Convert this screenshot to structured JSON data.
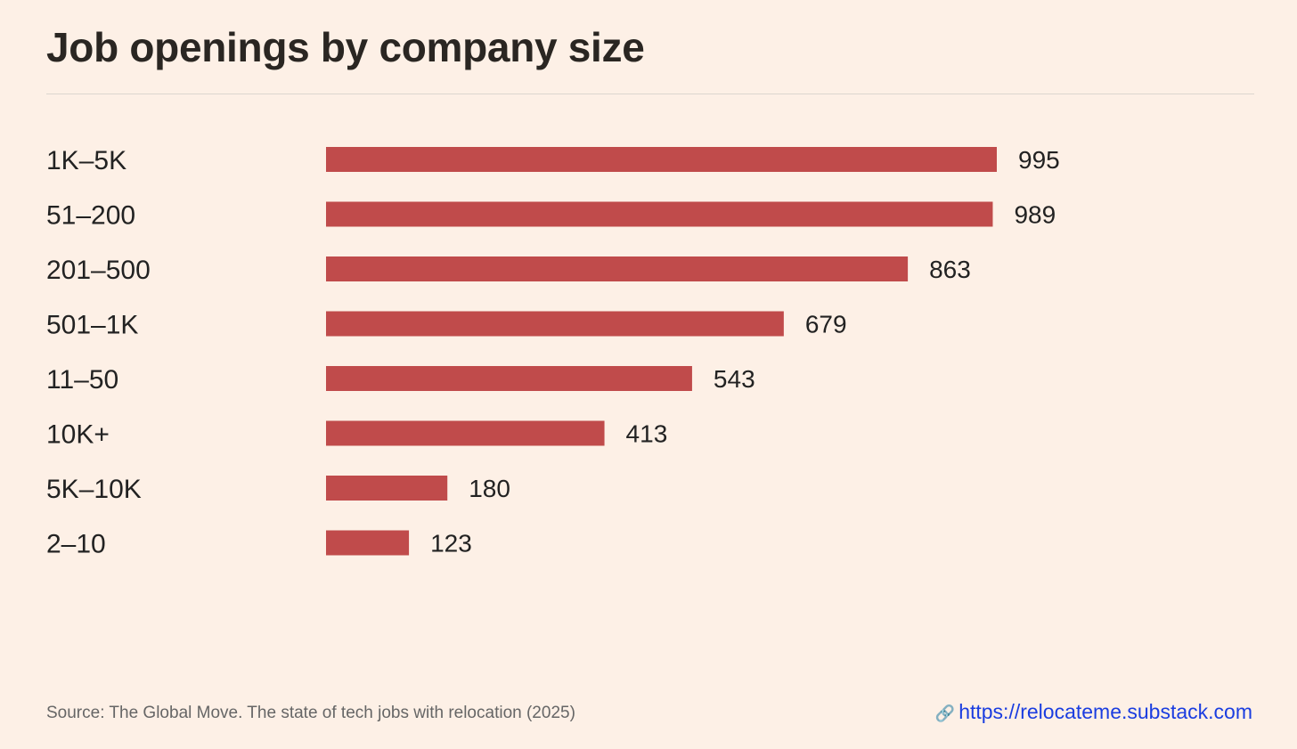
{
  "title": "Job openings by company size",
  "chart_data": {
    "type": "bar",
    "orientation": "horizontal",
    "title": "Job openings by company size",
    "categories": [
      "1K–5K",
      "51–200",
      "201–500",
      "501–1K",
      "11–50",
      "10K+",
      "5K–10K",
      "2–10"
    ],
    "values": [
      995,
      989,
      863,
      679,
      543,
      413,
      180,
      123
    ],
    "xlabel": "",
    "ylabel": "",
    "xlim": [
      0,
      995
    ],
    "grid": false,
    "bar_color": "#c04b4b"
  },
  "footer": {
    "source": "Source: The Global Move. The state of tech jobs with relocation (2025)",
    "link_icon": "link-icon",
    "link_text": "https://relocateme.substack.com"
  }
}
